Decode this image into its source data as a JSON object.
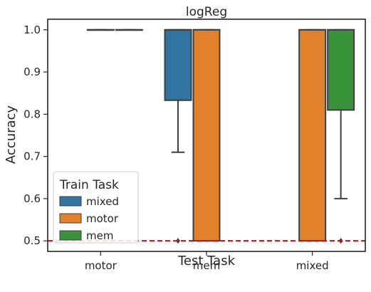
{
  "chart_data": {
    "type": "box",
    "title": "logReg",
    "xlabel": "Test Task",
    "ylabel": "Accuracy",
    "ylim": [
      0.475,
      1.025
    ],
    "yticks": [
      "0.5",
      "0.6",
      "0.7",
      "0.8",
      "0.9",
      "1.0"
    ],
    "categories": [
      "motor",
      "mem",
      "mixed"
    ],
    "legend": {
      "title": "Train Task",
      "placement": "bottom-left",
      "entries": [
        "mixed",
        "motor",
        "mem"
      ]
    },
    "colors": {
      "mixed": "#3274a1",
      "motor": "#e1812c",
      "mem": "#3a923a",
      "reference": "#e8000b",
      "edge": "#3f3f3f"
    },
    "reference_line": {
      "y": 0.5,
      "style": "dashed"
    },
    "boxes": [
      {
        "test": "motor",
        "train": "motor",
        "q1": 1.0,
        "median": 1.0,
        "q3": 1.0,
        "whisker_low": 1.0,
        "whisker_high": 1.0,
        "outliers": []
      },
      {
        "test": "motor",
        "train": "mem",
        "q1": 1.0,
        "median": 1.0,
        "q3": 1.0,
        "whisker_low": 1.0,
        "whisker_high": 1.0,
        "outliers": []
      },
      {
        "test": "mem",
        "train": "mixed",
        "q1": 0.833,
        "median": 1.0,
        "q3": 1.0,
        "whisker_low": 0.71,
        "whisker_high": 1.0,
        "outliers": [
          0.5
        ]
      },
      {
        "test": "mem",
        "train": "motor",
        "q1": 0.5,
        "median": 1.0,
        "q3": 1.0,
        "whisker_low": 0.5,
        "whisker_high": 1.0,
        "outliers": []
      },
      {
        "test": "mixed",
        "train": "motor",
        "q1": 0.5,
        "median": 1.0,
        "q3": 1.0,
        "whisker_low": 0.5,
        "whisker_high": 1.0,
        "outliers": []
      },
      {
        "test": "mixed",
        "train": "mem",
        "q1": 0.81,
        "median": 1.0,
        "q3": 1.0,
        "whisker_low": 0.6,
        "whisker_high": 1.0,
        "outliers": [
          0.5
        ]
      }
    ]
  }
}
